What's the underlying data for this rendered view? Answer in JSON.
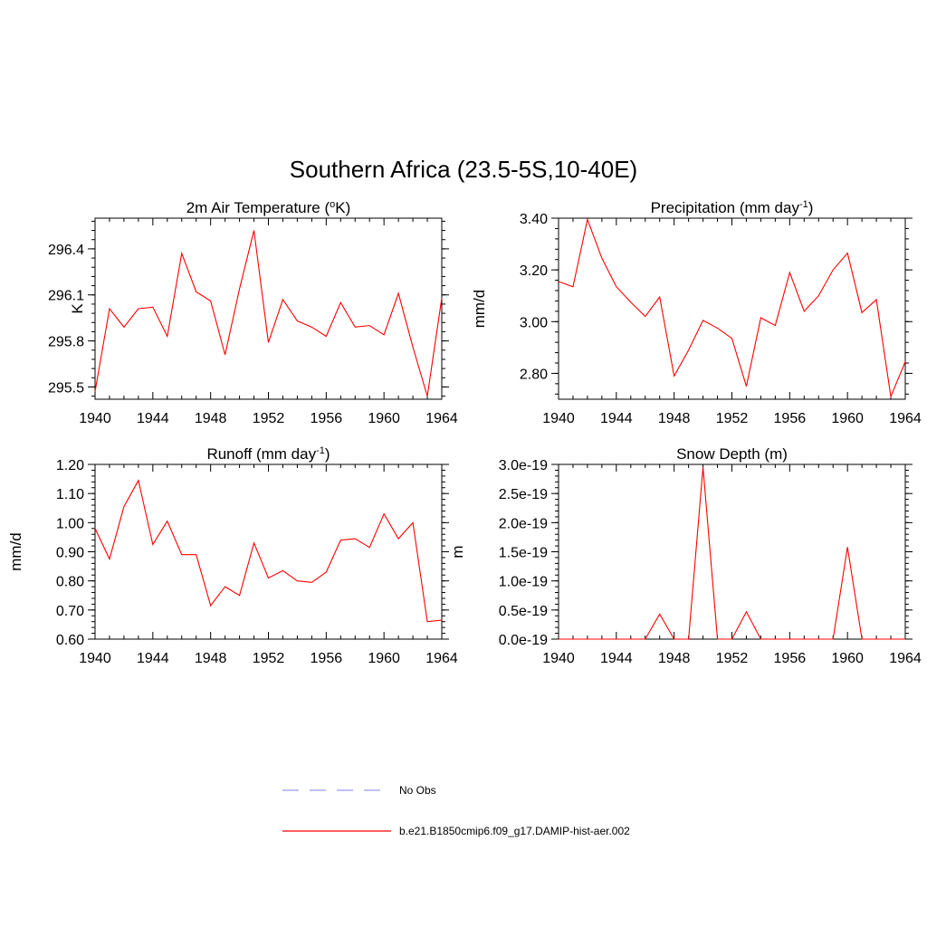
{
  "figure_title": "Southern Africa (23.5-5S,10-40E)",
  "legend": {
    "obs_label": "No Obs",
    "obs_color": "#9999ee",
    "model_label": "b.e21.B1850cmip6.f09_g17.DAMIP-hist-aer.002",
    "model_color": "#ff0000"
  },
  "chart_data": [
    {
      "type": "line",
      "title": "2m Air Temperature (",
      "title_sup": "o",
      "title_suffix": "K)",
      "ylabel": "K",
      "xlim": [
        1940,
        1964
      ],
      "ylim": [
        295.42,
        296.6
      ],
      "yticks": [
        295.5,
        295.8,
        296.1,
        296.4
      ],
      "ytick_labels": [
        "295.5",
        "295.8",
        "296.1",
        "296.4"
      ],
      "xticks": [
        1940,
        1944,
        1948,
        1952,
        1956,
        1960,
        1964
      ],
      "xtick_labels": [
        "1940",
        "1944",
        "1948",
        "1952",
        "1956",
        "1960",
        "1964"
      ],
      "series": [
        {
          "x": [
            1940,
            1941,
            1942,
            1943,
            1944,
            1945,
            1946,
            1947,
            1948,
            1949,
            1950,
            1951,
            1952,
            1953,
            1954,
            1955,
            1956,
            1957,
            1958,
            1959,
            1960,
            1961,
            1962,
            1963,
            1964
          ],
          "values": [
            295.47,
            296.01,
            295.89,
            296.01,
            296.02,
            295.83,
            296.37,
            296.12,
            296.06,
            295.71,
            296.14,
            296.52,
            295.79,
            296.07,
            295.93,
            295.89,
            295.83,
            296.05,
            295.89,
            295.9,
            295.84,
            296.11,
            295.76,
            295.44,
            296.08
          ],
          "color": "#ff0000"
        }
      ]
    },
    {
      "type": "line",
      "title": "Precipitation (mm day",
      "title_sup": "-1",
      "title_suffix": ")",
      "ylabel": "mm/d",
      "xlim": [
        1940,
        1964
      ],
      "ylim": [
        2.7,
        3.4
      ],
      "yticks": [
        2.8,
        3.0,
        3.2,
        3.4
      ],
      "ytick_labels": [
        "2.80",
        "3.00",
        "3.20",
        "3.40"
      ],
      "xticks": [
        1940,
        1944,
        1948,
        1952,
        1956,
        1960,
        1964
      ],
      "xtick_labels": [
        "1940",
        "1944",
        "1948",
        "1952",
        "1956",
        "1960",
        "1964"
      ],
      "series": [
        {
          "x": [
            1940,
            1941,
            1942,
            1943,
            1944,
            1945,
            1946,
            1947,
            1948,
            1949,
            1950,
            1951,
            1952,
            1953,
            1954,
            1955,
            1956,
            1957,
            1958,
            1959,
            1960,
            1961,
            1962,
            1963,
            1964
          ],
          "values": [
            3.155,
            3.135,
            3.395,
            3.245,
            3.135,
            3.075,
            3.02,
            3.095,
            2.79,
            2.89,
            3.005,
            2.975,
            2.935,
            2.75,
            3.015,
            2.985,
            3.19,
            3.04,
            3.1,
            3.2,
            3.265,
            3.035,
            3.085,
            2.71,
            2.845
          ],
          "color": "#ff0000"
        }
      ]
    },
    {
      "type": "line",
      "title": "Runoff (mm day",
      "title_sup": "-1",
      "title_suffix": ")",
      "ylabel": "mm/d",
      "xlim": [
        1940,
        1964
      ],
      "ylim": [
        0.6,
        1.2
      ],
      "yticks": [
        0.6,
        0.7,
        0.8,
        0.9,
        1.0,
        1.1,
        1.2
      ],
      "ytick_labels": [
        "0.60",
        "0.70",
        "0.80",
        "0.90",
        "1.00",
        "1.10",
        "1.20"
      ],
      "xticks": [
        1940,
        1944,
        1948,
        1952,
        1956,
        1960,
        1964
      ],
      "xtick_labels": [
        "1940",
        "1944",
        "1948",
        "1952",
        "1956",
        "1960",
        "1964"
      ],
      "series": [
        {
          "x": [
            1940,
            1941,
            1942,
            1943,
            1944,
            1945,
            1946,
            1947,
            1948,
            1949,
            1950,
            1951,
            1952,
            1953,
            1954,
            1955,
            1956,
            1957,
            1958,
            1959,
            1960,
            1961,
            1962,
            1963,
            1964
          ],
          "values": [
            0.98,
            0.875,
            1.055,
            1.145,
            0.925,
            1.005,
            0.89,
            0.89,
            0.715,
            0.78,
            0.75,
            0.93,
            0.81,
            0.835,
            0.8,
            0.795,
            0.83,
            0.94,
            0.945,
            0.915,
            1.03,
            0.945,
            1.0,
            0.66,
            0.665
          ],
          "color": "#ff0000"
        }
      ]
    },
    {
      "type": "line",
      "title": "Snow Depth (m)",
      "title_sup": "",
      "title_suffix": "",
      "ylabel": "m",
      "xlim": [
        1940,
        1964
      ],
      "ylim": [
        0,
        3e-19
      ],
      "yticks": [
        0,
        5e-20,
        1e-19,
        1.5e-19,
        2e-19,
        2.5e-19,
        3e-19
      ],
      "ytick_labels": [
        "0.0e-19",
        "0.5e-19",
        "1.0e-19",
        "1.5e-19",
        "2.0e-19",
        "2.5e-19",
        "3.0e-19"
      ],
      "xticks": [
        1940,
        1944,
        1948,
        1952,
        1956,
        1960,
        1964
      ],
      "xtick_labels": [
        "1940",
        "1944",
        "1948",
        "1952",
        "1956",
        "1960",
        "1964"
      ],
      "series": [
        {
          "x": [
            1940,
            1941,
            1942,
            1943,
            1944,
            1945,
            1946,
            1947,
            1948,
            1949,
            1950,
            1951,
            1952,
            1953,
            1954,
            1955,
            1956,
            1957,
            1958,
            1959,
            1960,
            1961,
            1962,
            1963,
            1964
          ],
          "values": [
            0,
            0,
            0,
            0,
            0,
            0,
            0,
            4.3e-20,
            0,
            0,
            2.95e-19,
            0,
            0,
            4.7e-20,
            0,
            0,
            0,
            0,
            0,
            0,
            1.58e-19,
            0,
            0,
            0,
            0
          ],
          "color": "#ff0000"
        }
      ]
    }
  ]
}
